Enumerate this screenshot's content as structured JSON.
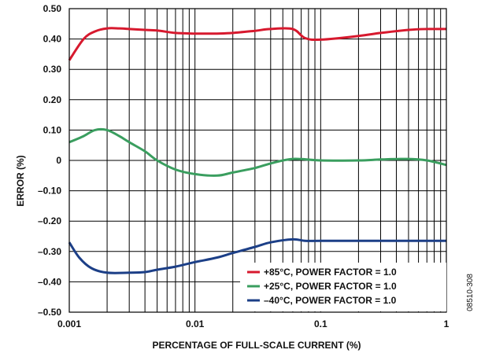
{
  "chart_data": {
    "type": "line",
    "xscale": "log",
    "xlim": [
      0.001,
      1
    ],
    "ylim": [
      -0.5,
      0.5
    ],
    "xlabel": "PERCENTAGE OF FULL-SCALE CURRENT (%)",
    "ylabel": "ERROR (%)",
    "xticks": [
      {
        "value": 0.001,
        "label": "0.001"
      },
      {
        "value": 0.01,
        "label": "0.01"
      },
      {
        "value": 0.1,
        "label": "0.1"
      },
      {
        "value": 1,
        "label": "1"
      }
    ],
    "yticks": [
      {
        "value": 0.5,
        "label": "0.50"
      },
      {
        "value": 0.4,
        "label": "0.40"
      },
      {
        "value": 0.3,
        "label": "0.30"
      },
      {
        "value": 0.2,
        "label": "0.20"
      },
      {
        "value": 0.1,
        "label": "0.10"
      },
      {
        "value": 0,
        "label": "0"
      },
      {
        "value": -0.1,
        "label": "–0.10"
      },
      {
        "value": -0.2,
        "label": "–0.20"
      },
      {
        "value": -0.3,
        "label": "–0.30"
      },
      {
        "value": -0.4,
        "label": "–0.40"
      },
      {
        "value": -0.5,
        "label": "–0.50"
      }
    ],
    "grid": true,
    "legend_position": "bottom-right",
    "series": [
      {
        "name": "+85°C, POWER FACTOR = 1.0",
        "color": "#d7192e",
        "x": [
          0.001,
          0.0013,
          0.0016,
          0.002,
          0.0025,
          0.003,
          0.004,
          0.005,
          0.007,
          0.01,
          0.015,
          0.02,
          0.03,
          0.04,
          0.06,
          0.075,
          0.1,
          0.2,
          0.3,
          0.5,
          0.7,
          1
        ],
        "y": [
          0.33,
          0.4,
          0.425,
          0.435,
          0.435,
          0.433,
          0.43,
          0.428,
          0.42,
          0.418,
          0.418,
          0.42,
          0.427,
          0.433,
          0.433,
          0.403,
          0.398,
          0.41,
          0.42,
          0.43,
          0.433,
          0.433
        ]
      },
      {
        "name": "+25°C, POWER FACTOR = 1.0",
        "color": "#3a9e5f",
        "x": [
          0.001,
          0.0013,
          0.0016,
          0.002,
          0.0025,
          0.003,
          0.004,
          0.005,
          0.007,
          0.01,
          0.015,
          0.02,
          0.03,
          0.04,
          0.06,
          0.1,
          0.2,
          0.3,
          0.5,
          0.7,
          1
        ],
        "y": [
          0.06,
          0.08,
          0.1,
          0.1,
          0.08,
          0.06,
          0.03,
          0.0,
          -0.03,
          -0.045,
          -0.05,
          -0.04,
          -0.025,
          -0.01,
          0.005,
          0.0,
          0.0,
          0.003,
          0.005,
          0.0,
          -0.015
        ]
      },
      {
        "name": "–40°C, POWER FACTOR = 1.0",
        "color": "#1c3f87",
        "x": [
          0.001,
          0.0012,
          0.0015,
          0.002,
          0.003,
          0.004,
          0.005,
          0.007,
          0.01,
          0.015,
          0.02,
          0.03,
          0.04,
          0.06,
          0.075,
          0.1,
          0.2,
          0.3,
          0.5,
          0.7,
          1
        ],
        "y": [
          -0.27,
          -0.32,
          -0.355,
          -0.37,
          -0.37,
          -0.368,
          -0.36,
          -0.35,
          -0.335,
          -0.32,
          -0.305,
          -0.285,
          -0.27,
          -0.26,
          -0.265,
          -0.265,
          -0.265,
          -0.265,
          -0.265,
          -0.265,
          -0.265
        ]
      }
    ]
  },
  "figure_id": "08510-308"
}
